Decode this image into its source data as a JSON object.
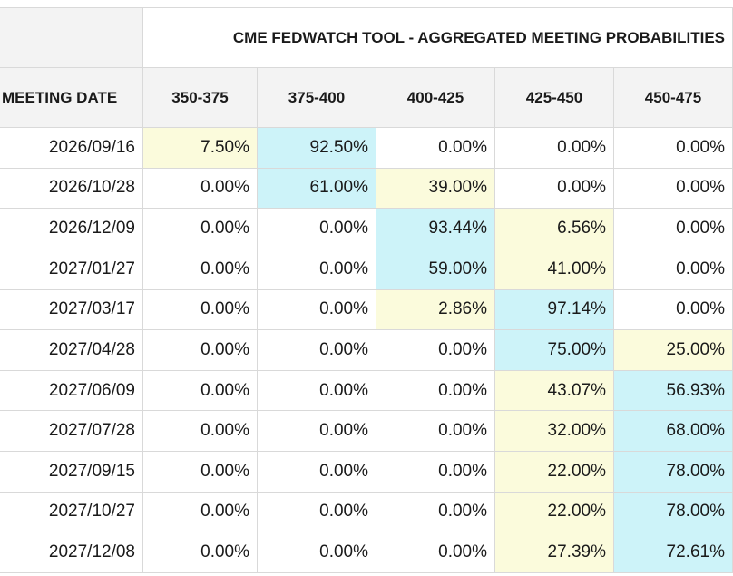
{
  "table": {
    "title": "CME FEDWATCH TOOL - AGGREGATED MEETING PROBABILITIES",
    "date_header": "MEETING DATE",
    "columns": [
      "350-375",
      "375-400",
      "400-425",
      "425-450",
      "450-475"
    ],
    "highlight_colors": {
      "y": "#fbfbdc",
      "b": "#cdf3f9"
    },
    "rows": [
      {
        "date": "2026/09/16",
        "values": [
          "7.50%",
          "92.50%",
          "0.00%",
          "0.00%",
          "0.00%"
        ],
        "hl": [
          "y",
          "b",
          "",
          "",
          ""
        ]
      },
      {
        "date": "2026/10/28",
        "values": [
          "0.00%",
          "61.00%",
          "39.00%",
          "0.00%",
          "0.00%"
        ],
        "hl": [
          "",
          "b",
          "y",
          "",
          ""
        ]
      },
      {
        "date": "2026/12/09",
        "values": [
          "0.00%",
          "0.00%",
          "93.44%",
          "6.56%",
          "0.00%"
        ],
        "hl": [
          "",
          "",
          "b",
          "y",
          ""
        ]
      },
      {
        "date": "2027/01/27",
        "values": [
          "0.00%",
          "0.00%",
          "59.00%",
          "41.00%",
          "0.00%"
        ],
        "hl": [
          "",
          "",
          "b",
          "y",
          ""
        ]
      },
      {
        "date": "2027/03/17",
        "values": [
          "0.00%",
          "0.00%",
          "2.86%",
          "97.14%",
          "0.00%"
        ],
        "hl": [
          "",
          "",
          "y",
          "b",
          ""
        ]
      },
      {
        "date": "2027/04/28",
        "values": [
          "0.00%",
          "0.00%",
          "0.00%",
          "75.00%",
          "25.00%"
        ],
        "hl": [
          "",
          "",
          "",
          "b",
          "y"
        ]
      },
      {
        "date": "2027/06/09",
        "values": [
          "0.00%",
          "0.00%",
          "0.00%",
          "43.07%",
          "56.93%"
        ],
        "hl": [
          "",
          "",
          "",
          "y",
          "b"
        ]
      },
      {
        "date": "2027/07/28",
        "values": [
          "0.00%",
          "0.00%",
          "0.00%",
          "32.00%",
          "68.00%"
        ],
        "hl": [
          "",
          "",
          "",
          "y",
          "b"
        ]
      },
      {
        "date": "2027/09/15",
        "values": [
          "0.00%",
          "0.00%",
          "0.00%",
          "22.00%",
          "78.00%"
        ],
        "hl": [
          "",
          "",
          "",
          "y",
          "b"
        ]
      },
      {
        "date": "2027/10/27",
        "values": [
          "0.00%",
          "0.00%",
          "0.00%",
          "22.00%",
          "78.00%"
        ],
        "hl": [
          "",
          "",
          "",
          "y",
          "b"
        ]
      },
      {
        "date": "2027/12/08",
        "values": [
          "0.00%",
          "0.00%",
          "0.00%",
          "27.39%",
          "72.61%"
        ],
        "hl": [
          "",
          "",
          "",
          "y",
          "b"
        ]
      }
    ]
  }
}
